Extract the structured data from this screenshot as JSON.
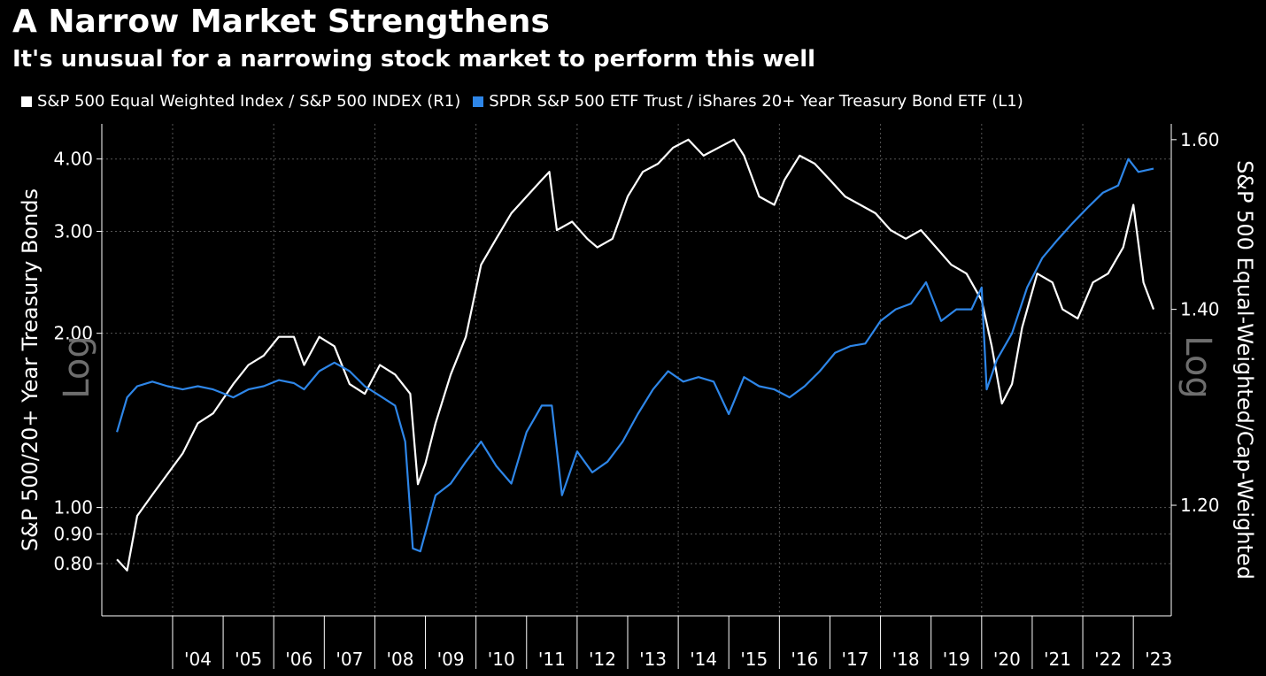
{
  "title": "A Narrow Market Strengthens",
  "subtitle": "It's unusual for a narrowing stock market to perform this well",
  "legend": [
    {
      "label": "S&P 500 Equal Weighted Index / S&P 500 INDEX (R1)",
      "color": "#ffffff"
    },
    {
      "label": "SPDR S&P 500 ETF Trust / iShares 20+ Year Treasury Bond ETF (L1)",
      "color": "#2e86e8"
    }
  ],
  "scale_label_left": "Log",
  "scale_label_right": "Log",
  "chart_data": {
    "type": "line",
    "title": "A Narrow Market Strengthens",
    "subtitle": "It's unusual for a narrowing stock market to perform this well",
    "x_ticks": [
      "'04",
      "'05",
      "'06",
      "'07",
      "'08",
      "'09",
      "'10",
      "'11",
      "'12",
      "'13",
      "'14",
      "'15",
      "'16",
      "'17",
      "'18",
      "'19",
      "'20",
      "'21",
      "'22",
      "'23"
    ],
    "x_range": [
      2002.6,
      2023.75
    ],
    "left_axis": {
      "label": "S&P 500/20+ Year Treasury Bonds",
      "scale": "log",
      "range": [
        0.65,
        4.6
      ],
      "ticks": [
        "0.80",
        "0.90",
        "1.00",
        "2.00",
        "3.00",
        "4.00"
      ]
    },
    "right_axis": {
      "label": "S&P 500 Equal-Weighted/Cap-Weighted",
      "scale": "log",
      "range": [
        1.1,
        1.62
      ],
      "ticks": [
        "1.20",
        "1.40",
        "1.60"
      ]
    },
    "grid": true,
    "legend_position": "top",
    "series": [
      {
        "name": "S&P 500 Equal Weighted Index / S&P 500 INDEX (R1)",
        "axis": "right",
        "color": "#ffffff",
        "x": [
          2002.9,
          2003.1,
          2003.3,
          2003.6,
          2003.9,
          2004.2,
          2004.5,
          2004.8,
          2005.2,
          2005.5,
          2005.8,
          2006.1,
          2006.4,
          2006.6,
          2006.9,
          2007.2,
          2007.5,
          2007.8,
          2008.1,
          2008.4,
          2008.7,
          2008.85,
          2009.0,
          2009.2,
          2009.5,
          2009.8,
          2010.1,
          2010.4,
          2010.7,
          2011.0,
          2011.3,
          2011.45,
          2011.6,
          2011.9,
          2012.2,
          2012.4,
          2012.7,
          2013.0,
          2013.3,
          2013.6,
          2013.9,
          2014.2,
          2014.5,
          2014.8,
          2015.1,
          2015.3,
          2015.6,
          2015.9,
          2016.1,
          2016.4,
          2016.7,
          2017.0,
          2017.3,
          2017.6,
          2017.9,
          2018.2,
          2018.5,
          2018.8,
          2019.1,
          2019.4,
          2019.7,
          2020.0,
          2020.2,
          2020.4,
          2020.6,
          2020.8,
          2021.1,
          2021.4,
          2021.6,
          2021.9,
          2022.2,
          2022.5,
          2022.8,
          2023.0,
          2023.2,
          2023.4
        ],
        "y": [
          1.15,
          1.14,
          1.19,
          1.21,
          1.23,
          1.25,
          1.28,
          1.29,
          1.32,
          1.34,
          1.35,
          1.37,
          1.37,
          1.34,
          1.37,
          1.36,
          1.32,
          1.31,
          1.34,
          1.33,
          1.31,
          1.22,
          1.24,
          1.28,
          1.33,
          1.37,
          1.45,
          1.48,
          1.51,
          1.53,
          1.55,
          1.56,
          1.49,
          1.5,
          1.48,
          1.47,
          1.48,
          1.53,
          1.56,
          1.57,
          1.59,
          1.6,
          1.58,
          1.59,
          1.6,
          1.58,
          1.53,
          1.52,
          1.55,
          1.58,
          1.57,
          1.55,
          1.53,
          1.52,
          1.51,
          1.49,
          1.48,
          1.49,
          1.47,
          1.45,
          1.44,
          1.41,
          1.36,
          1.3,
          1.32,
          1.38,
          1.44,
          1.43,
          1.4,
          1.39,
          1.43,
          1.44,
          1.47,
          1.52,
          1.43,
          1.4
        ]
      },
      {
        "name": "SPDR S&P 500 ETF Trust / iShares 20+ Year Treasury Bond ETF (L1)",
        "axis": "left",
        "color": "#2e86e8",
        "x": [
          2002.9,
          2003.1,
          2003.3,
          2003.6,
          2003.9,
          2004.2,
          2004.5,
          2004.8,
          2005.2,
          2005.5,
          2005.8,
          2006.1,
          2006.4,
          2006.6,
          2006.9,
          2007.2,
          2007.5,
          2007.8,
          2008.1,
          2008.4,
          2008.6,
          2008.75,
          2008.9,
          2009.2,
          2009.5,
          2009.8,
          2010.1,
          2010.4,
          2010.7,
          2011.0,
          2011.3,
          2011.5,
          2011.7,
          2012.0,
          2012.3,
          2012.6,
          2012.9,
          2013.2,
          2013.5,
          2013.8,
          2014.1,
          2014.4,
          2014.7,
          2015.0,
          2015.3,
          2015.6,
          2015.9,
          2016.2,
          2016.5,
          2016.8,
          2017.1,
          2017.4,
          2017.7,
          2018.0,
          2018.3,
          2018.6,
          2018.9,
          2019.2,
          2019.5,
          2019.8,
          2020.0,
          2020.1,
          2020.3,
          2020.6,
          2020.9,
          2021.2,
          2021.5,
          2021.8,
          2022.1,
          2022.4,
          2022.7,
          2022.9,
          2023.1,
          2023.4
        ],
        "y": [
          1.35,
          1.55,
          1.62,
          1.65,
          1.62,
          1.6,
          1.62,
          1.6,
          1.55,
          1.6,
          1.62,
          1.66,
          1.64,
          1.6,
          1.72,
          1.78,
          1.72,
          1.62,
          1.56,
          1.5,
          1.3,
          0.85,
          0.84,
          1.05,
          1.1,
          1.2,
          1.3,
          1.18,
          1.1,
          1.35,
          1.5,
          1.5,
          1.05,
          1.25,
          1.15,
          1.2,
          1.3,
          1.45,
          1.6,
          1.72,
          1.65,
          1.68,
          1.65,
          1.45,
          1.68,
          1.62,
          1.6,
          1.55,
          1.62,
          1.72,
          1.85,
          1.9,
          1.92,
          2.1,
          2.2,
          2.25,
          2.45,
          2.1,
          2.2,
          2.2,
          2.4,
          1.6,
          1.8,
          2.0,
          2.4,
          2.7,
          2.9,
          3.1,
          3.3,
          3.5,
          3.6,
          4.0,
          3.8,
          3.85
        ]
      }
    ]
  }
}
